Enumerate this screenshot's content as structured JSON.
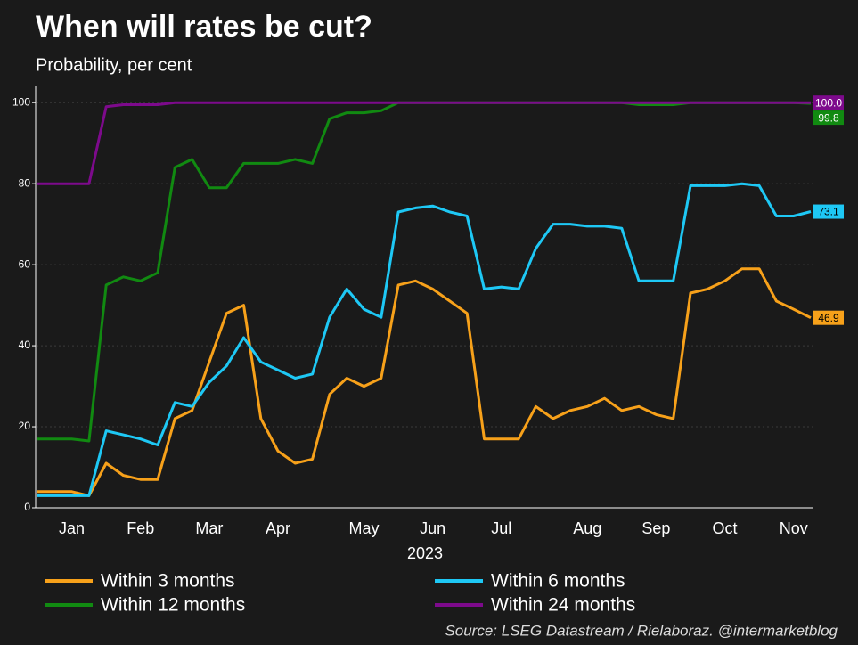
{
  "chart_data": {
    "type": "line",
    "title": "When will rates be cut?",
    "subtitle": "Probability, per cent",
    "xlabel": "2023",
    "source": "Source: LSEG Datastream / Rielaboraz. @intermarketblog",
    "categories": [
      null,
      null,
      "Jan",
      null,
      null,
      null,
      "Feb",
      null,
      null,
      null,
      "Mar",
      null,
      null,
      null,
      "Apr",
      null,
      null,
      null,
      null,
      "May",
      null,
      null,
      null,
      "Jun",
      null,
      null,
      null,
      "Jul",
      null,
      null,
      null,
      null,
      "Aug",
      null,
      null,
      null,
      "Sep",
      null,
      null,
      null,
      "Oct",
      null,
      null,
      null,
      "Nov",
      null
    ],
    "ylim": [
      0,
      104
    ],
    "yticks": [
      0,
      20,
      40,
      60,
      80,
      100
    ],
    "grid": true,
    "series": [
      {
        "name": "Within 3 months",
        "color": "#f7a11a",
        "values": [
          4,
          4,
          4,
          3,
          11,
          8,
          7,
          7,
          22,
          24,
          36,
          48,
          50,
          22,
          14,
          11,
          12,
          28,
          32,
          30,
          32,
          55,
          56,
          54,
          51,
          48,
          17,
          17,
          17,
          25,
          22,
          24,
          25,
          27,
          24,
          25,
          23,
          22,
          53,
          54,
          56,
          59,
          59,
          51,
          49,
          46.9
        ]
      },
      {
        "name": "Within 6 months",
        "color": "#1ec8f5",
        "values": [
          3,
          3,
          3,
          3,
          19,
          18,
          17,
          15.5,
          26,
          25,
          31,
          35,
          42,
          36,
          34,
          32,
          33,
          47,
          54,
          49,
          47,
          73,
          74,
          74.5,
          73,
          72,
          54,
          54.5,
          54,
          64,
          70,
          70,
          69.5,
          69.5,
          69,
          56,
          56,
          56,
          79.5,
          79.5,
          79.5,
          80,
          79.5,
          72,
          72,
          73.1
        ]
      },
      {
        "name": "Within 12 months",
        "color": "#118a11",
        "values": [
          17,
          17,
          17,
          16.5,
          55,
          57,
          56,
          58,
          84,
          86,
          79,
          79,
          85,
          85,
          85,
          86,
          85,
          96,
          97.5,
          97.5,
          98,
          100,
          100,
          100,
          100,
          100,
          100,
          100,
          100,
          100,
          100,
          100,
          100,
          100,
          100,
          99.5,
          99.5,
          99.5,
          100,
          100,
          100,
          100,
          100,
          100,
          100,
          99.8
        ]
      },
      {
        "name": "Within 24 months",
        "color": "#7d0a8c",
        "values": [
          80,
          80,
          80,
          80,
          99,
          99.5,
          99.5,
          99.5,
          100,
          100,
          100,
          100,
          100,
          100,
          100,
          100,
          100,
          100,
          100,
          100,
          100,
          100,
          100,
          100,
          100,
          100,
          100,
          100,
          100,
          100,
          100,
          100,
          100,
          100,
          100,
          100,
          100,
          100,
          100,
          100,
          100,
          100,
          100,
          100,
          100,
          100
        ],
        "value_labels": [
          null,
          null,
          null,
          null,
          null,
          null,
          null,
          null,
          null,
          null,
          null,
          null,
          null,
          null,
          null,
          null,
          null,
          null,
          null,
          null,
          null,
          null,
          null,
          null,
          null,
          null,
          null,
          null,
          null,
          null,
          null,
          null,
          null,
          null,
          null,
          null,
          null,
          null,
          null,
          null,
          null,
          null,
          null,
          null,
          null,
          "100.0"
        ]
      }
    ]
  }
}
